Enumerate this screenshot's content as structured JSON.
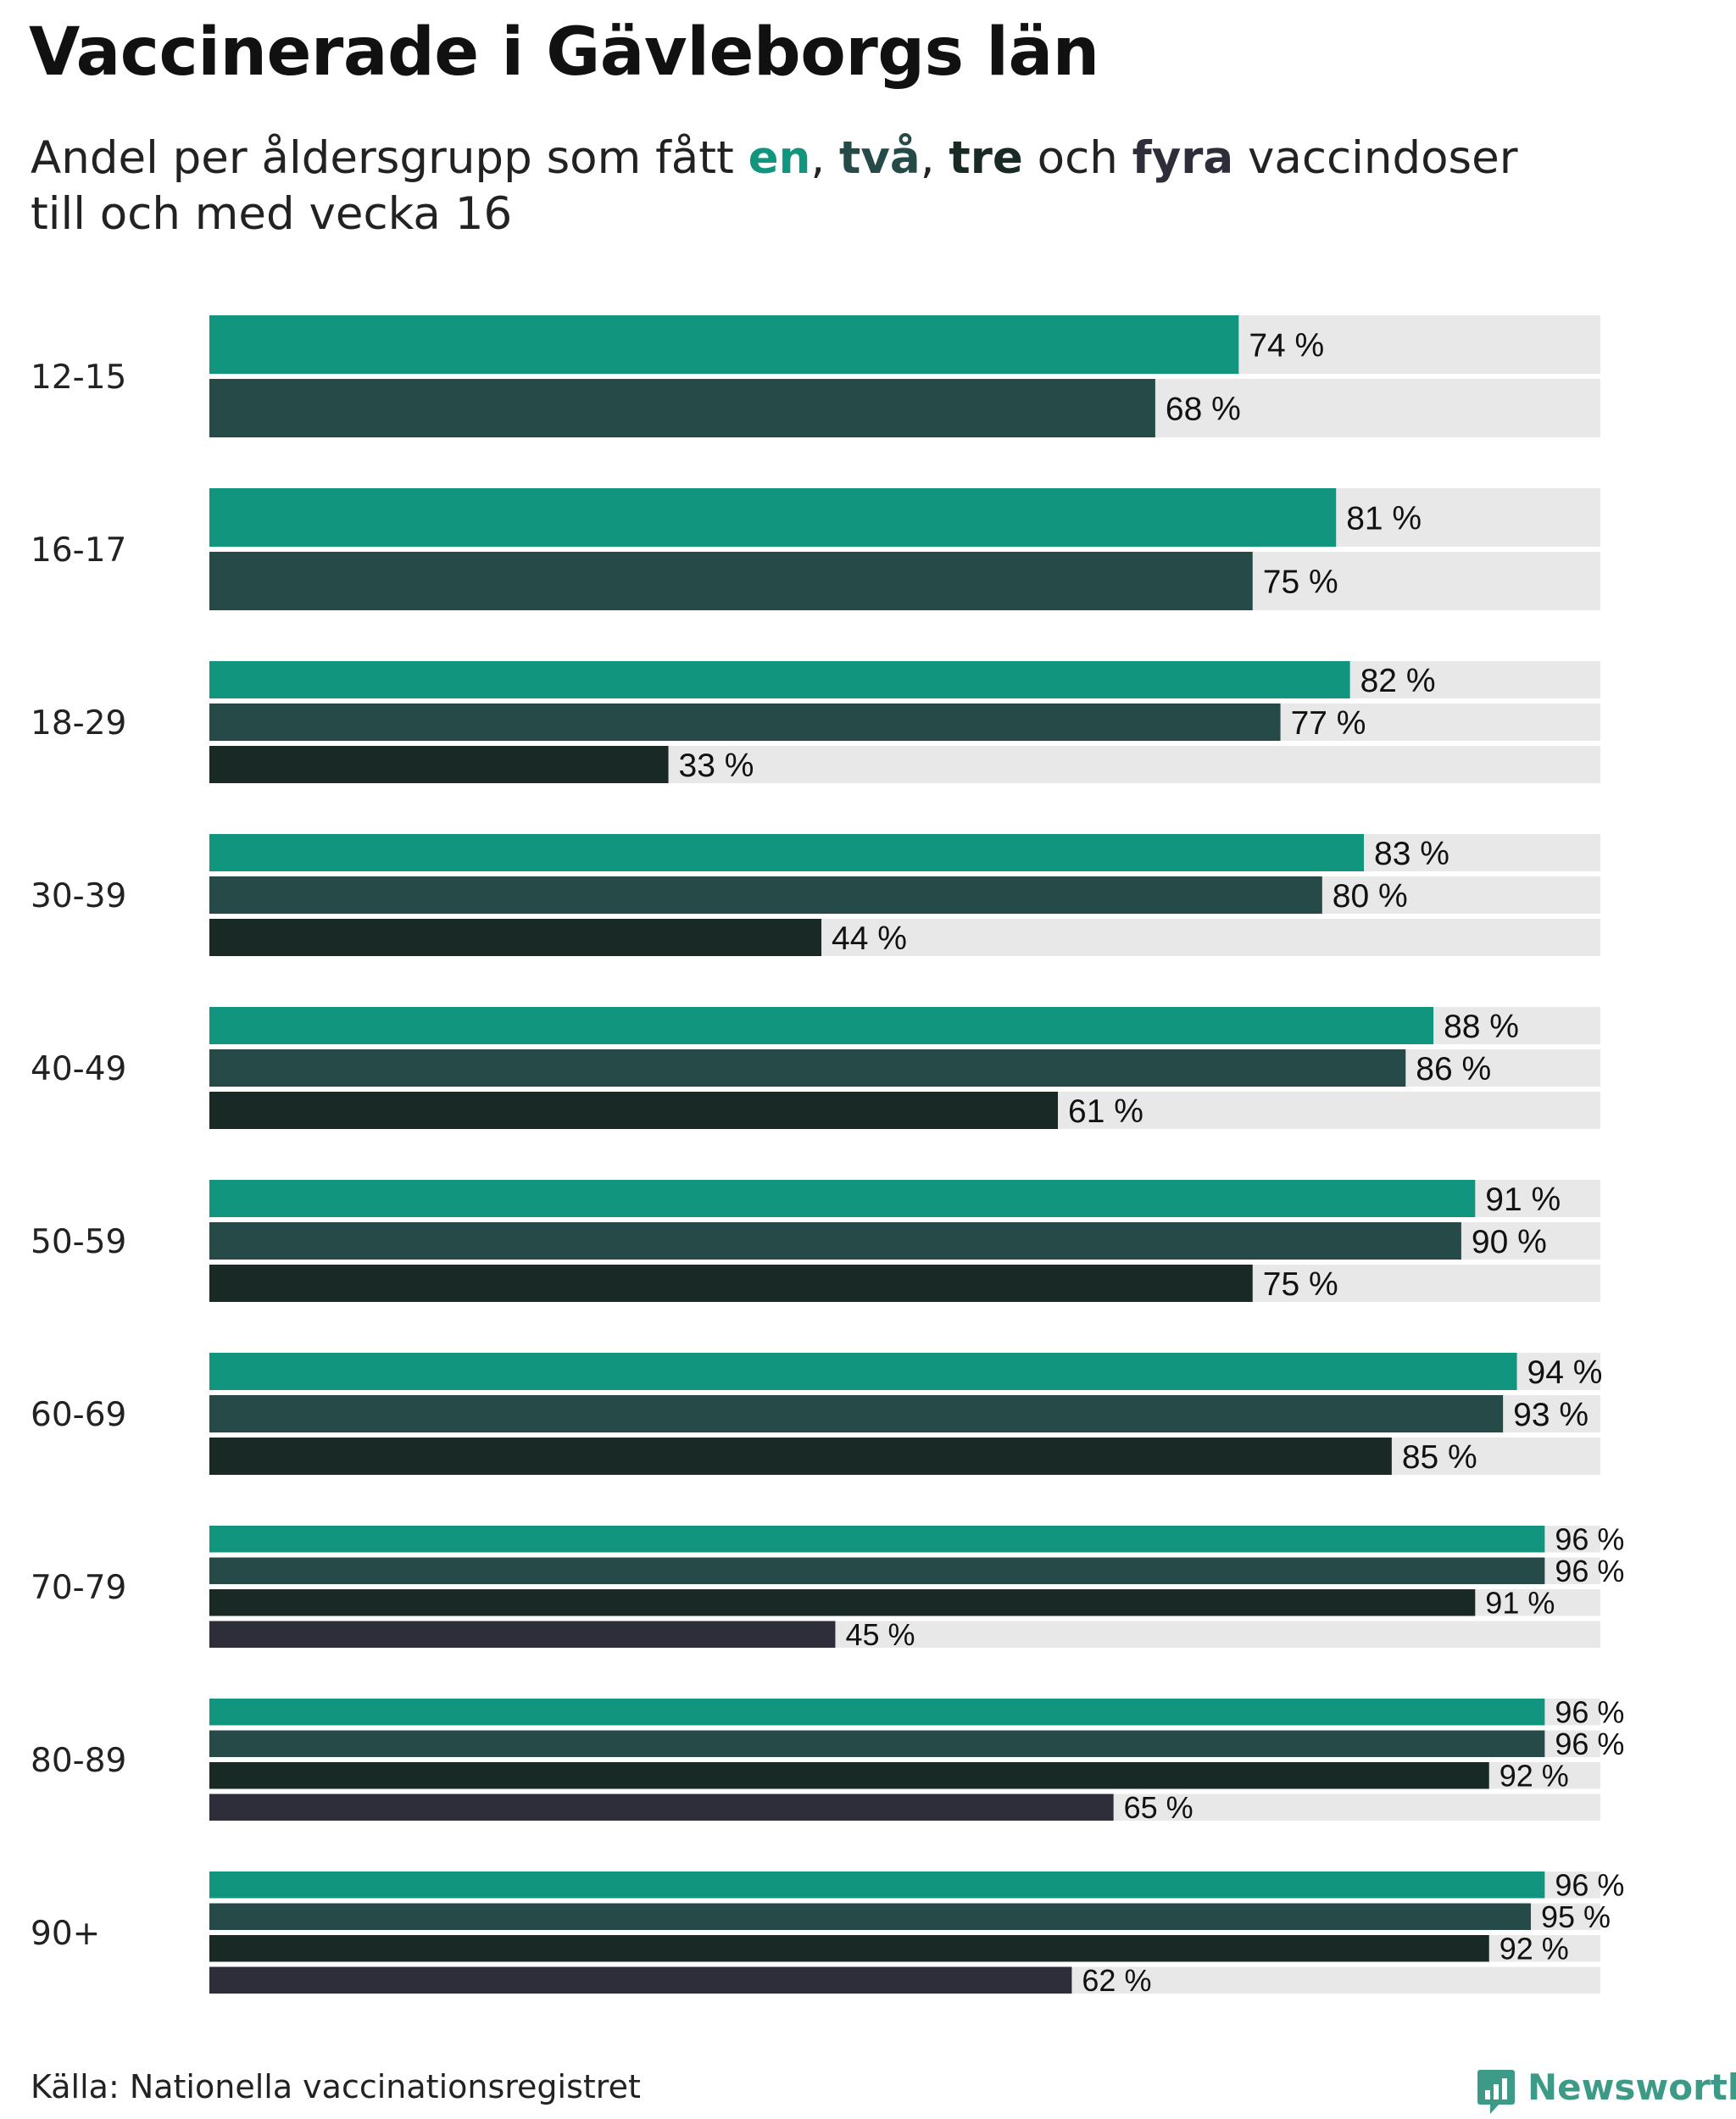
{
  "title": "Vaccinerade i Gävleborgs län",
  "subtitle": {
    "prefix": "Andel per åldersgrupp som fått ",
    "k1": "en",
    "sep1": ", ",
    "k2": "två",
    "sep2": ", ",
    "k3": "tre",
    "och": " och ",
    "k4": "fyra",
    "suffix": " vaccindoser",
    "line2": "till och med vecka 16"
  },
  "colors": {
    "en": "#12957f",
    "tva": "#264a47",
    "tre": "#192926",
    "fyra": "#2e2e3a",
    "track": "#e8e8e8"
  },
  "chart_data": {
    "type": "bar",
    "orientation": "horizontal",
    "title": "Vaccinerade i Gävleborgs län",
    "xlim": [
      0,
      100
    ],
    "unit": "%",
    "series_names": [
      "en",
      "två",
      "tre",
      "fyra"
    ],
    "categories": [
      "12-15",
      "16-17",
      "18-29",
      "30-39",
      "40-49",
      "50-59",
      "60-69",
      "70-79",
      "80-89",
      "90+"
    ],
    "groups": [
      {
        "category": "12-15",
        "values": [
          74,
          68
        ]
      },
      {
        "category": "16-17",
        "values": [
          81,
          75
        ]
      },
      {
        "category": "18-29",
        "values": [
          82,
          77,
          33
        ]
      },
      {
        "category": "30-39",
        "values": [
          83,
          80,
          44
        ]
      },
      {
        "category": "40-49",
        "values": [
          88,
          86,
          61
        ]
      },
      {
        "category": "50-59",
        "values": [
          91,
          90,
          75
        ]
      },
      {
        "category": "60-69",
        "values": [
          94,
          93,
          85
        ]
      },
      {
        "category": "70-79",
        "values": [
          96,
          96,
          91,
          45
        ]
      },
      {
        "category": "80-89",
        "values": [
          96,
          96,
          92,
          65
        ]
      },
      {
        "category": "90+",
        "values": [
          96,
          95,
          92,
          62
        ]
      }
    ]
  },
  "footer": {
    "source": "Källa: Nationella vaccinationsregistret",
    "brand": "Newsworthy"
  }
}
